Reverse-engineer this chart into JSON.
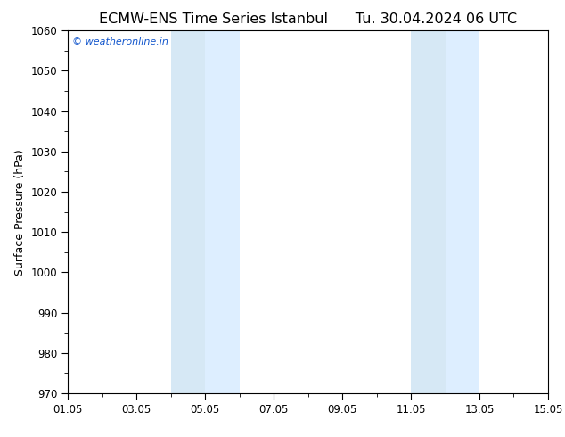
{
  "title_left": "ECMW-ENS Time Series Istanbul",
  "title_right": "Tu. 30.04.2024 06 UTC",
  "ylabel": "Surface Pressure (hPa)",
  "ylim": [
    970,
    1060
  ],
  "yticks": [
    970,
    980,
    990,
    1000,
    1010,
    1020,
    1030,
    1040,
    1050,
    1060
  ],
  "xlim": [
    0,
    14
  ],
  "x_tick_labels": [
    "01.05",
    "03.05",
    "05.05",
    "07.05",
    "09.05",
    "11.05",
    "13.05",
    "15.05"
  ],
  "x_tick_positions": [
    0,
    2,
    4,
    6,
    8,
    10,
    12,
    14
  ],
  "shaded_bands": [
    {
      "x_start": 3.0,
      "x_end": 4.0,
      "color": "#d6e8f5"
    },
    {
      "x_start": 4.0,
      "x_end": 5.0,
      "color": "#ddeeff"
    },
    {
      "x_start": 10.0,
      "x_end": 11.0,
      "color": "#d6e8f5"
    },
    {
      "x_start": 11.0,
      "x_end": 12.0,
      "color": "#ddeeff"
    }
  ],
  "watermark": "© weatheronline.in",
  "watermark_color": "#1155cc",
  "background_color": "#ffffff",
  "plot_bg_color": "#ffffff",
  "title_fontsize": 11.5,
  "ylabel_fontsize": 9,
  "tick_fontsize": 8.5
}
